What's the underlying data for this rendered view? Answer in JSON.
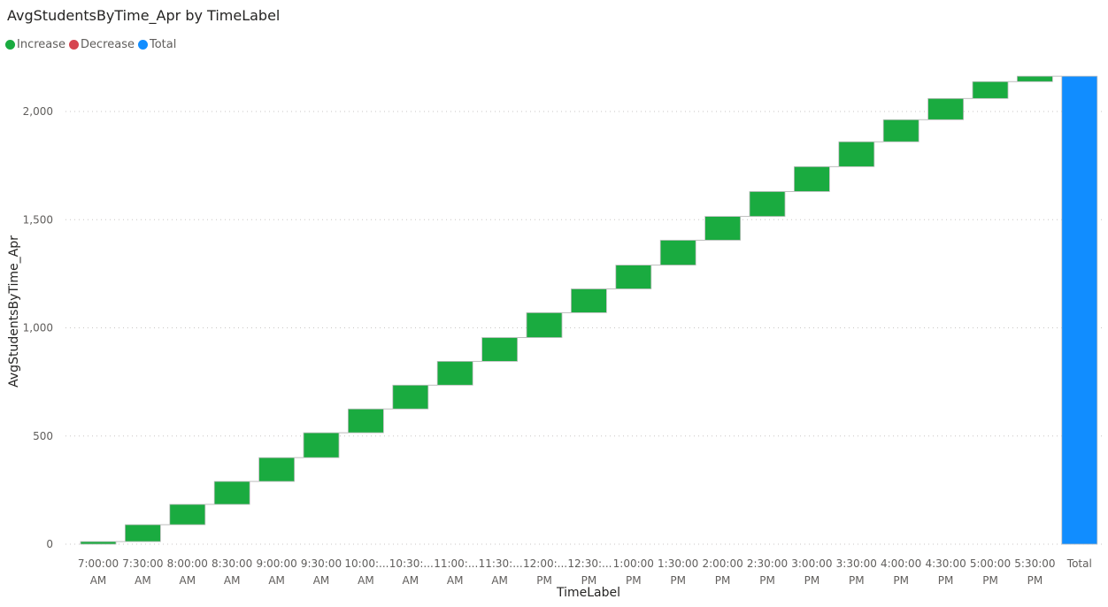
{
  "header": {
    "title": "AvgStudentsByTime_Apr by TimeLabel"
  },
  "legend": {
    "items": [
      {
        "label": "Increase",
        "color": "#1AAB40"
      },
      {
        "label": "Decrease",
        "color": "#D64550"
      },
      {
        "label": "Total",
        "color": "#118DFF"
      }
    ]
  },
  "axes": {
    "xlabel": "TimeLabel",
    "ylabel": "AvgStudentsByTime_Apr",
    "yticks": [
      "0",
      "500",
      "1,000",
      "1,500",
      "2,000"
    ]
  },
  "xticks": [
    {
      "l1": "7:00:00",
      "l2": "AM"
    },
    {
      "l1": "7:30:00",
      "l2": "AM"
    },
    {
      "l1": "8:00:00",
      "l2": "AM"
    },
    {
      "l1": "8:30:00",
      "l2": "AM"
    },
    {
      "l1": "9:00:00",
      "l2": "AM"
    },
    {
      "l1": "9:30:00",
      "l2": "AM"
    },
    {
      "l1": "10:00:...",
      "l2": "AM"
    },
    {
      "l1": "10:30:...",
      "l2": "AM"
    },
    {
      "l1": "11:00:...",
      "l2": "AM"
    },
    {
      "l1": "11:30:...",
      "l2": "AM"
    },
    {
      "l1": "12:00:...",
      "l2": "PM"
    },
    {
      "l1": "12:30:...",
      "l2": "PM"
    },
    {
      "l1": "1:00:00",
      "l2": "PM"
    },
    {
      "l1": "1:30:00",
      "l2": "PM"
    },
    {
      "l1": "2:00:00",
      "l2": "PM"
    },
    {
      "l1": "2:30:00",
      "l2": "PM"
    },
    {
      "l1": "3:00:00",
      "l2": "PM"
    },
    {
      "l1": "3:30:00",
      "l2": "PM"
    },
    {
      "l1": "4:00:00",
      "l2": "PM"
    },
    {
      "l1": "4:30:00",
      "l2": "PM"
    },
    {
      "l1": "5:00:00",
      "l2": "PM"
    },
    {
      "l1": "5:30:00",
      "l2": "PM"
    },
    {
      "l1": "Total",
      "l2": ""
    }
  ],
  "chart_data": {
    "type": "waterfall",
    "title": "AvgStudentsByTime_Apr by TimeLabel",
    "xlabel": "TimeLabel",
    "ylabel": "AvgStudentsByTime_Apr",
    "ylim": [
      0,
      2200
    ],
    "yticks": [
      0,
      500,
      1000,
      1500,
      2000
    ],
    "grid": "horizontal dotted",
    "legend_position": "top-left",
    "legend": [
      "Increase",
      "Decrease",
      "Total"
    ],
    "categories": [
      "7:00:00 AM",
      "7:30:00 AM",
      "8:00:00 AM",
      "8:30:00 AM",
      "9:00:00 AM",
      "9:30:00 AM",
      "10:00:00 AM",
      "10:30:00 AM",
      "11:00:00 AM",
      "11:30:00 AM",
      "12:00:00 PM",
      "12:30:00 PM",
      "1:00:00 PM",
      "1:30:00 PM",
      "2:00:00 PM",
      "2:30:00 PM",
      "3:00:00 PM",
      "3:30:00 PM",
      "4:00:00 PM",
      "4:30:00 PM",
      "5:00:00 PM",
      "5:30:00 PM"
    ],
    "values": [
      12,
      78,
      94,
      106,
      110,
      115,
      110,
      110,
      110,
      110,
      115,
      110,
      110,
      115,
      110,
      115,
      115,
      115,
      102,
      98,
      78,
      25
    ],
    "total": 2163
  }
}
